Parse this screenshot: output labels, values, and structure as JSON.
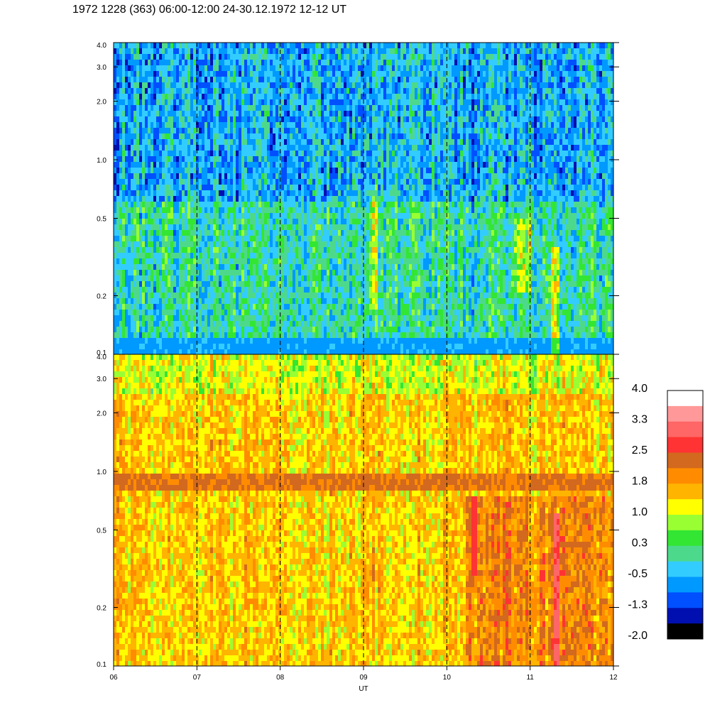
{
  "title": "1972 1228 (363) 06:00-12:00 24-30.12.1972  12-12 UT",
  "chart_data": {
    "type": "heatmap",
    "xlabel": "UT",
    "x_ticks": [
      "06",
      "07",
      "08",
      "09",
      "10",
      "11",
      "12"
    ],
    "x_range": [
      6,
      12
    ],
    "dashed_hour_lines": [
      7,
      8,
      9,
      10,
      11
    ],
    "panels": [
      {
        "name": "upper",
        "y_scale": "log",
        "ylim": [
          0.1,
          4.0
        ],
        "y_ticks": [
          {
            "value": 0.1,
            "label": "0.1"
          },
          {
            "value": 0.2,
            "label": "0.2"
          },
          {
            "value": 0.5,
            "label": "0.5"
          },
          {
            "value": 1.0,
            "label": "1.0"
          },
          {
            "value": 2.0,
            "label": "2.0"
          },
          {
            "value": 3.0,
            "label": "3.0"
          },
          {
            "value": 4.0,
            "label": "4.0"
          }
        ],
        "approx_level_range": [
          -1.3,
          1.2
        ]
      },
      {
        "name": "lower",
        "y_scale": "log",
        "ylim": [
          0.1,
          4.0
        ],
        "y_ticks": [
          {
            "value": 0.1,
            "label": "0.1"
          },
          {
            "value": 0.2,
            "label": "0.2"
          },
          {
            "value": 0.5,
            "label": "0.5"
          },
          {
            "value": 1.0,
            "label": "1.0"
          },
          {
            "value": 2.0,
            "label": "2.0"
          },
          {
            "value": 3.0,
            "label": "3.0"
          },
          {
            "value": 4.0,
            "label": "4.0"
          }
        ],
        "approx_level_range": [
          0.6,
          2.7
        ],
        "band_near": [
          0.8,
          1.0
        ]
      }
    ],
    "colorbar": {
      "range": [
        -2.0,
        4.0
      ],
      "tick_labels": [
        "4.0",
        "3.3",
        "2.5",
        "1.8",
        "1.0",
        "0.3",
        "-0.5",
        "-1.3",
        "-2.0"
      ],
      "colors": [
        "#ffffff",
        "#ff9999",
        "#ff6666",
        "#ff3333",
        "#d2691e",
        "#ff8c00",
        "#ffb400",
        "#ffff00",
        "#99ff33",
        "#33e633",
        "#4dd98c",
        "#33ccff",
        "#0099ff",
        "#0050ff",
        "#0010b0",
        "#000000"
      ]
    }
  }
}
